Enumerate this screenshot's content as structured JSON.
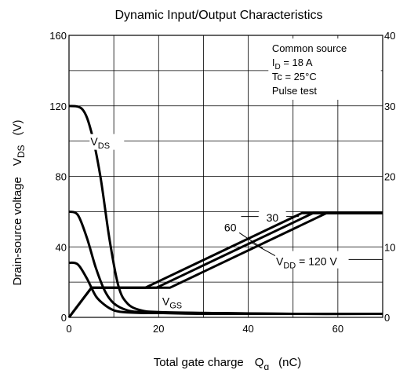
{
  "chart_data": {
    "type": "line",
    "title": "Dynamic Input/Output Characteristics",
    "xlabel": {
      "main": "Total gate charge",
      "sym": "Q",
      "sub": "g",
      "unit": "(nC)"
    },
    "ylabel_left": {
      "main": "Drain-source voltage",
      "sym": "V",
      "sub": "DS",
      "unit": "(V)"
    },
    "xlim": [
      0,
      70
    ],
    "ylim_left": [
      0,
      160
    ],
    "ylim_right": [
      0,
      40
    ],
    "xticks": [
      0,
      20,
      40,
      60
    ],
    "xtick_labels": [
      "0",
      "20",
      "40",
      "60"
    ],
    "yticks_left": [
      0,
      40,
      80,
      120,
      160
    ],
    "ytick_labels_left": [
      "0",
      "40",
      "80",
      "120",
      "160"
    ],
    "yticks_right": [
      0,
      10,
      20,
      30,
      40
    ],
    "ytick_labels_right": [
      "0",
      "10",
      "20",
      "30",
      "40"
    ],
    "grid": true,
    "conditions": [
      "Common source",
      "I|D| = 18 A",
      "Tc = 25°C",
      "Pulse test"
    ],
    "series": [
      {
        "curve": "VDS",
        "vdd": 120,
        "x": [
          0,
          3,
          5,
          7,
          9,
          11,
          13,
          16,
          20,
          30,
          50,
          70
        ],
        "y": [
          120,
          118,
          105,
          80,
          45,
          18,
          8,
          4,
          3,
          2.5,
          2,
          2
        ]
      },
      {
        "curve": "VDS",
        "vdd": 60,
        "x": [
          0,
          2,
          4,
          6,
          8,
          10,
          13,
          16,
          20,
          30,
          50,
          70
        ],
        "y": [
          60,
          58,
          45,
          28,
          15,
          8,
          4,
          3,
          2.5,
          2.5,
          2,
          2
        ]
      },
      {
        "curve": "VDS",
        "vdd": 30,
        "x": [
          0,
          2,
          4,
          6,
          8,
          10,
          12,
          16,
          20,
          30,
          50,
          70
        ],
        "y": [
          31,
          30,
          22,
          12,
          7,
          4,
          3,
          2.5,
          2.5,
          2,
          2,
          2
        ]
      },
      {
        "curve": "VGS",
        "vdd": 30,
        "x": [
          0,
          5,
          17,
          52,
          70
        ],
        "y": [
          0,
          4.2,
          4.2,
          14.8,
          14.8
        ]
      },
      {
        "curve": "VGS",
        "vdd": 60,
        "x": [
          0,
          5,
          19.5,
          54.5,
          70
        ],
        "y": [
          0,
          4.2,
          4.2,
          14.8,
          14.8
        ]
      },
      {
        "curve": "VGS",
        "vdd": 120,
        "x": [
          0,
          5,
          22.5,
          57.5,
          70
        ],
        "y": [
          0,
          4.2,
          4.2,
          14.8,
          14.8
        ]
      }
    ],
    "annotations": {
      "vds_label": {
        "sym": "V",
        "sub": "DS"
      },
      "vgs_label": {
        "sym": "V",
        "sub": "GS"
      },
      "vdd_30": "30",
      "vdd_60": "60",
      "vdd_120": {
        "sym": "V",
        "sub": "DD",
        "text": " = 120 V"
      }
    }
  }
}
